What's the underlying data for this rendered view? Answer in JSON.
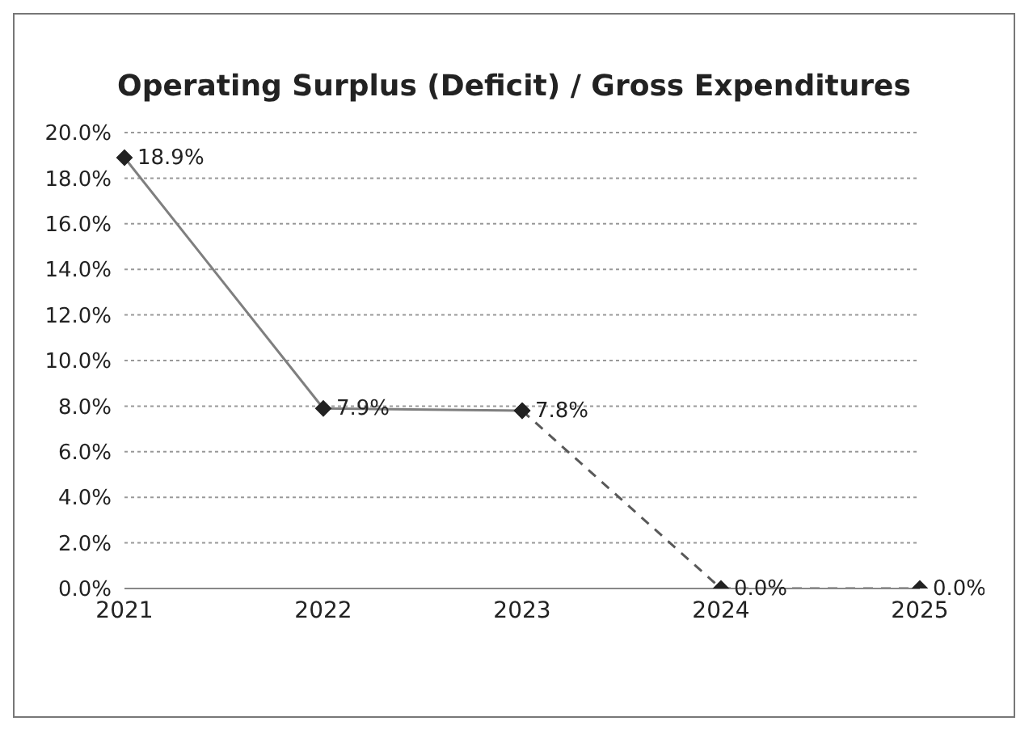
{
  "chart_data": {
    "type": "line",
    "title": "Operating Surplus (Deficit) / Gross Expenditures",
    "categories": [
      "2021",
      "2022",
      "2023",
      "2024",
      "2025"
    ],
    "series": [
      {
        "color": "#7f7f7f",
        "line_style": "solid",
        "values": [
          18.9,
          7.9,
          7.8,
          null,
          null
        ],
        "value_labels": [
          "18.9%",
          "7.9%",
          "7.8%",
          null,
          null
        ]
      },
      {
        "color": "#595959",
        "line_style": "dashed",
        "values": [
          null,
          null,
          7.8,
          0,
          0
        ],
        "value_labels": [
          null,
          null,
          null,
          "0.0%",
          "0.0%"
        ]
      }
    ],
    "ylim": [
      0,
      20
    ],
    "yticks": [
      {
        "value": 0,
        "label": "0.0%"
      },
      {
        "value": 2,
        "label": "2.0%"
      },
      {
        "value": 4,
        "label": "4.0%"
      },
      {
        "value": 6,
        "label": "6.0%"
      },
      {
        "value": 8,
        "label": "8.0%"
      },
      {
        "value": 10,
        "label": "10.0%"
      },
      {
        "value": 12,
        "label": "12.0%"
      },
      {
        "value": 14,
        "label": "14.0%"
      },
      {
        "value": 16,
        "label": "16.0%"
      },
      {
        "value": 18,
        "label": "18.0%"
      },
      {
        "value": 20,
        "label": "20.0%"
      }
    ],
    "grid": "y",
    "legend": false,
    "marker": "diamond"
  }
}
